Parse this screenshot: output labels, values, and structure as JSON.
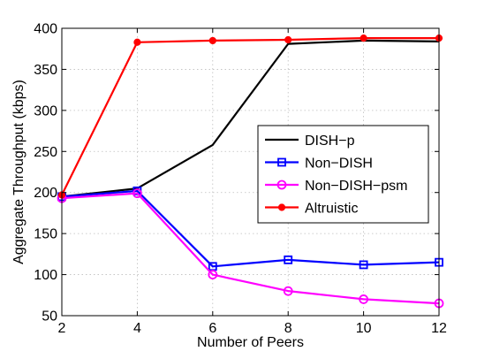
{
  "chart_data": {
    "type": "line",
    "xlabel": "Number of Peers",
    "ylabel": "Aggregate Throughput (kbps)",
    "xlim": [
      2,
      12
    ],
    "ylim": [
      50,
      400
    ],
    "xticks": [
      2,
      4,
      6,
      8,
      10,
      12
    ],
    "yticks": [
      50,
      100,
      150,
      200,
      250,
      300,
      350,
      400
    ],
    "grid": true,
    "legend_position": "right",
    "x": [
      2,
      4,
      6,
      8,
      10,
      12
    ],
    "series": [
      {
        "name": "DISH−p",
        "color": "#000000",
        "marker": "none",
        "values": [
          195,
          205,
          258,
          381,
          385,
          384
        ]
      },
      {
        "name": "Non−DISH",
        "color": "#0000ff",
        "marker": "square",
        "values": [
          195,
          202,
          110,
          118,
          112,
          115
        ]
      },
      {
        "name": "Non−DISH−psm",
        "color": "#ff00ff",
        "marker": "circle",
        "values": [
          193,
          199,
          100,
          80,
          70,
          65
        ]
      },
      {
        "name": "Altruistic",
        "color": "#ff0000",
        "marker": "dot",
        "values": [
          197,
          383,
          385,
          386,
          388,
          388
        ]
      }
    ]
  }
}
